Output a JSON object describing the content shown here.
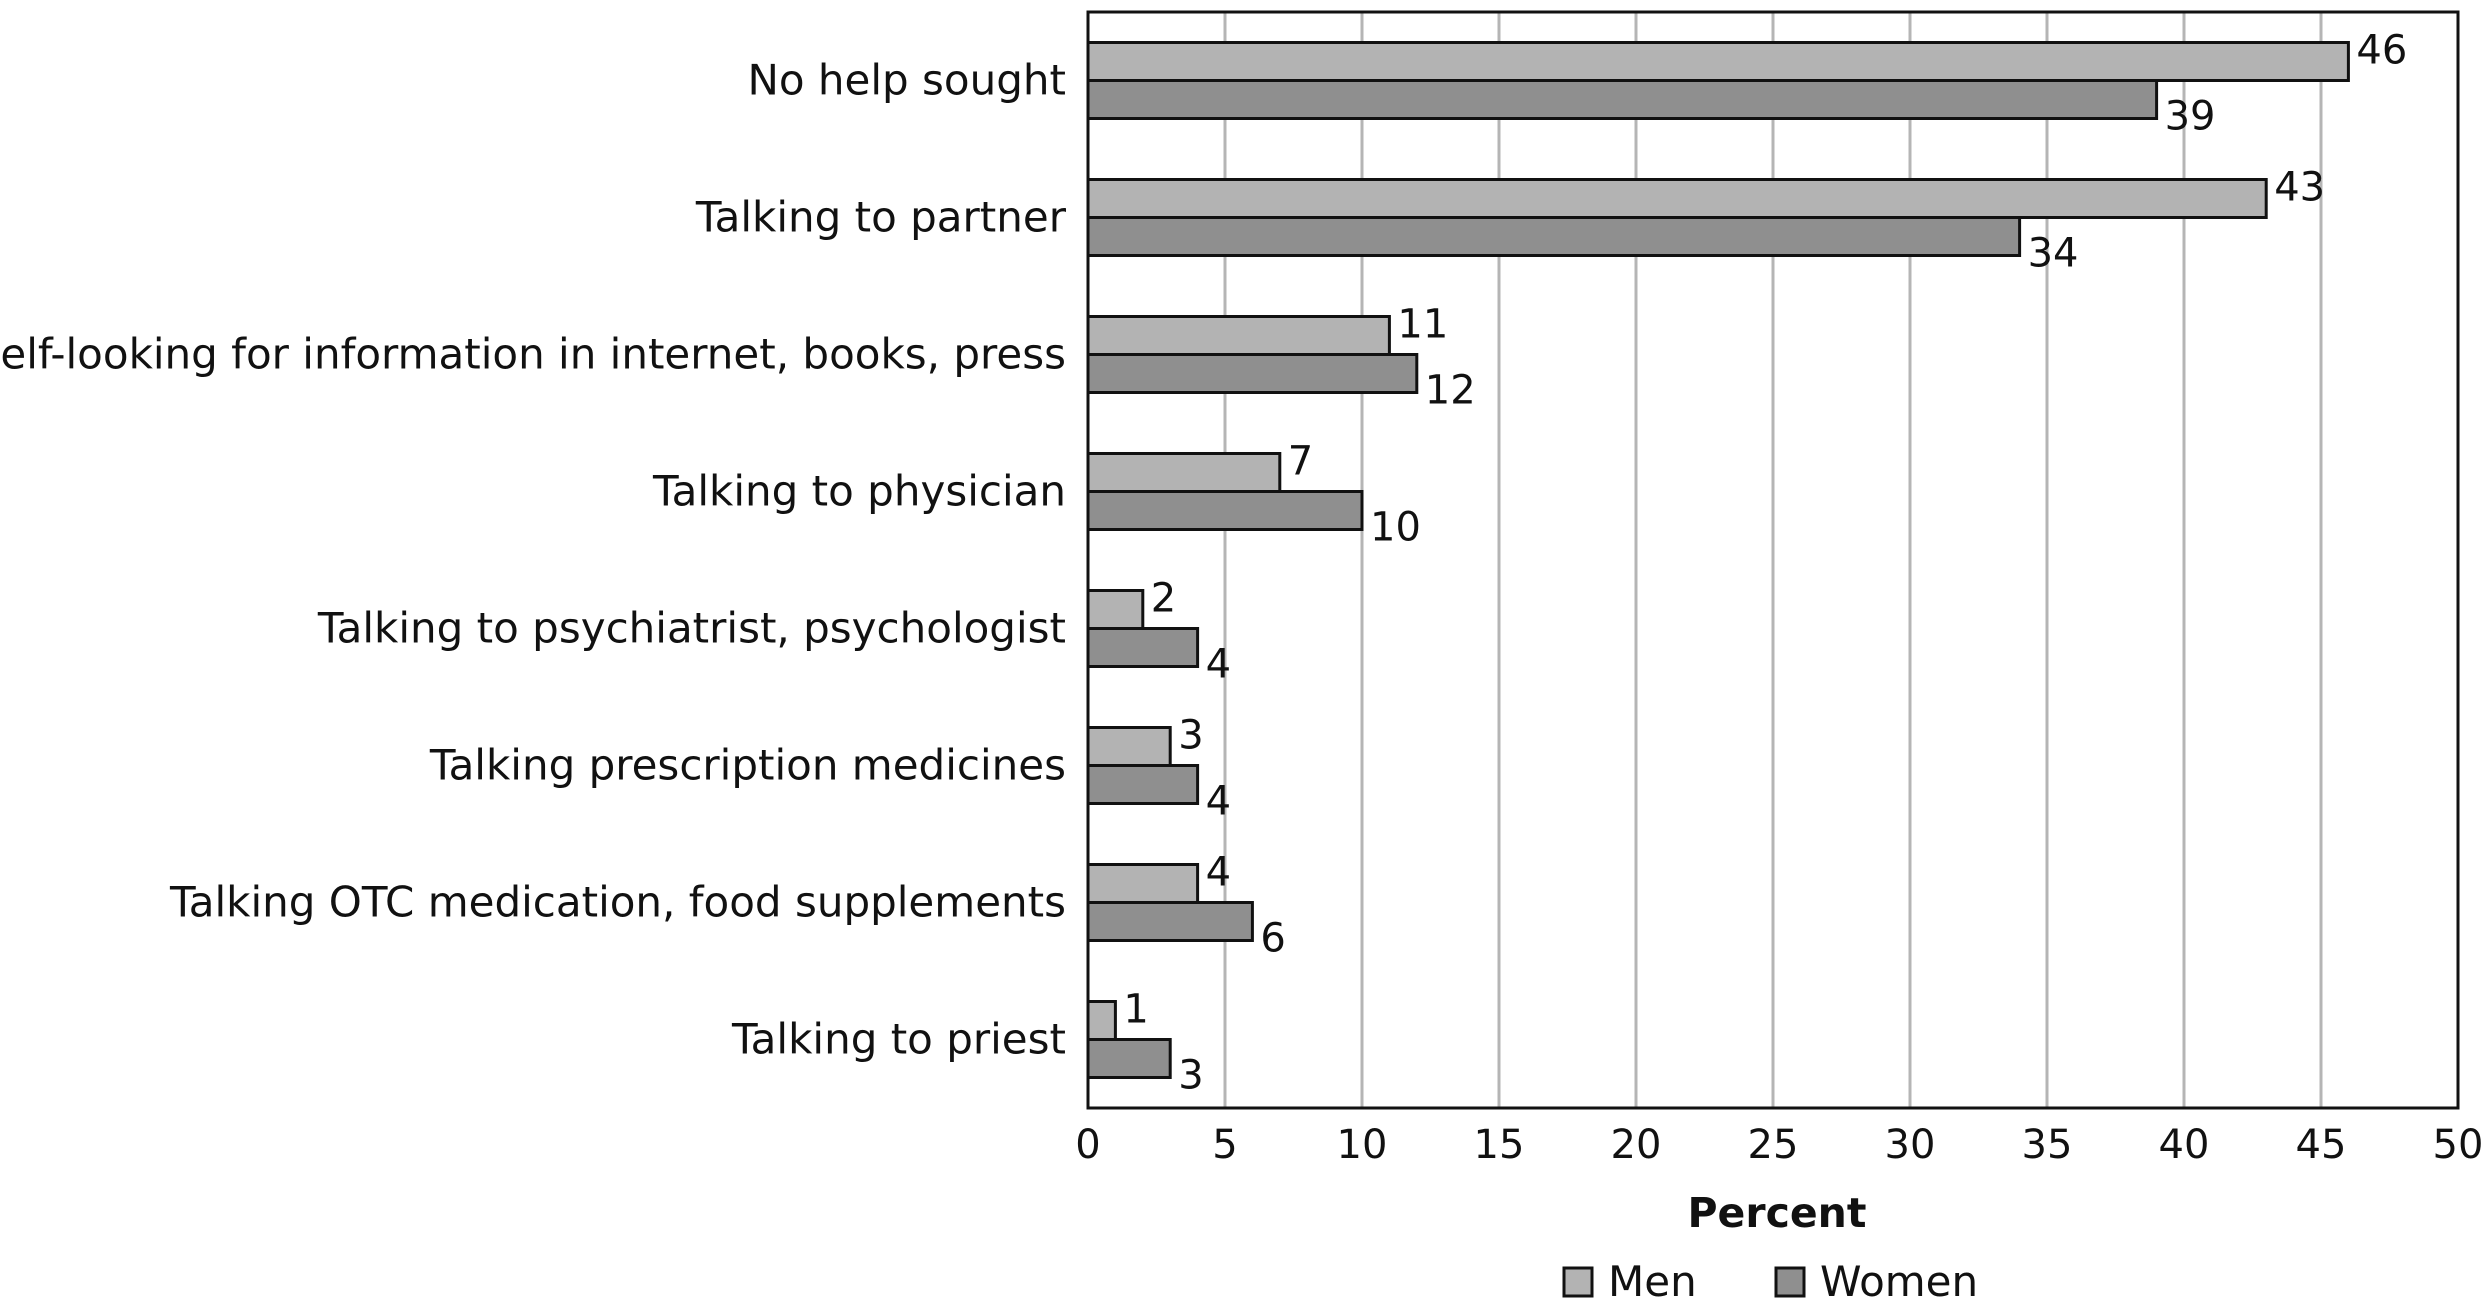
{
  "chart_data": {
    "type": "bar",
    "orientation": "horizontal",
    "categories": [
      "No help sought",
      "Talking to partner",
      "Self-looking for information in internet, books, press",
      "Talking to physician",
      "Talking to psychiatrist, psychologist",
      "Talking prescription medicines",
      "Talking OTC medication, food supplements",
      "Talking to priest"
    ],
    "series": [
      {
        "name": "Men",
        "color": "#b3b3b3",
        "values": [
          46,
          43,
          11,
          7,
          2,
          3,
          4,
          1
        ]
      },
      {
        "name": "Women",
        "color": "#8f8f8f",
        "values": [
          39,
          34,
          12,
          10,
          4,
          4,
          6,
          3
        ]
      }
    ],
    "data_labels": {
      "Men": [
        "46",
        "43",
        "11",
        "7",
        "2",
        "3",
        "4",
        "1"
      ],
      "Women": [
        "39",
        "34",
        "12",
        "10",
        "4",
        "4",
        "6",
        "3"
      ]
    },
    "xlabel": "Percent",
    "ylabel": "",
    "xlim": [
      0,
      50
    ],
    "xticks": [
      0,
      5,
      10,
      15,
      20,
      25,
      30,
      35,
      40,
      45,
      50
    ],
    "xtick_labels": [
      "0",
      "5",
      "10",
      "15",
      "20",
      "25",
      "30",
      "35",
      "40",
      "45",
      "50"
    ],
    "grid": "vertical",
    "legend_position": "bottom-center"
  }
}
